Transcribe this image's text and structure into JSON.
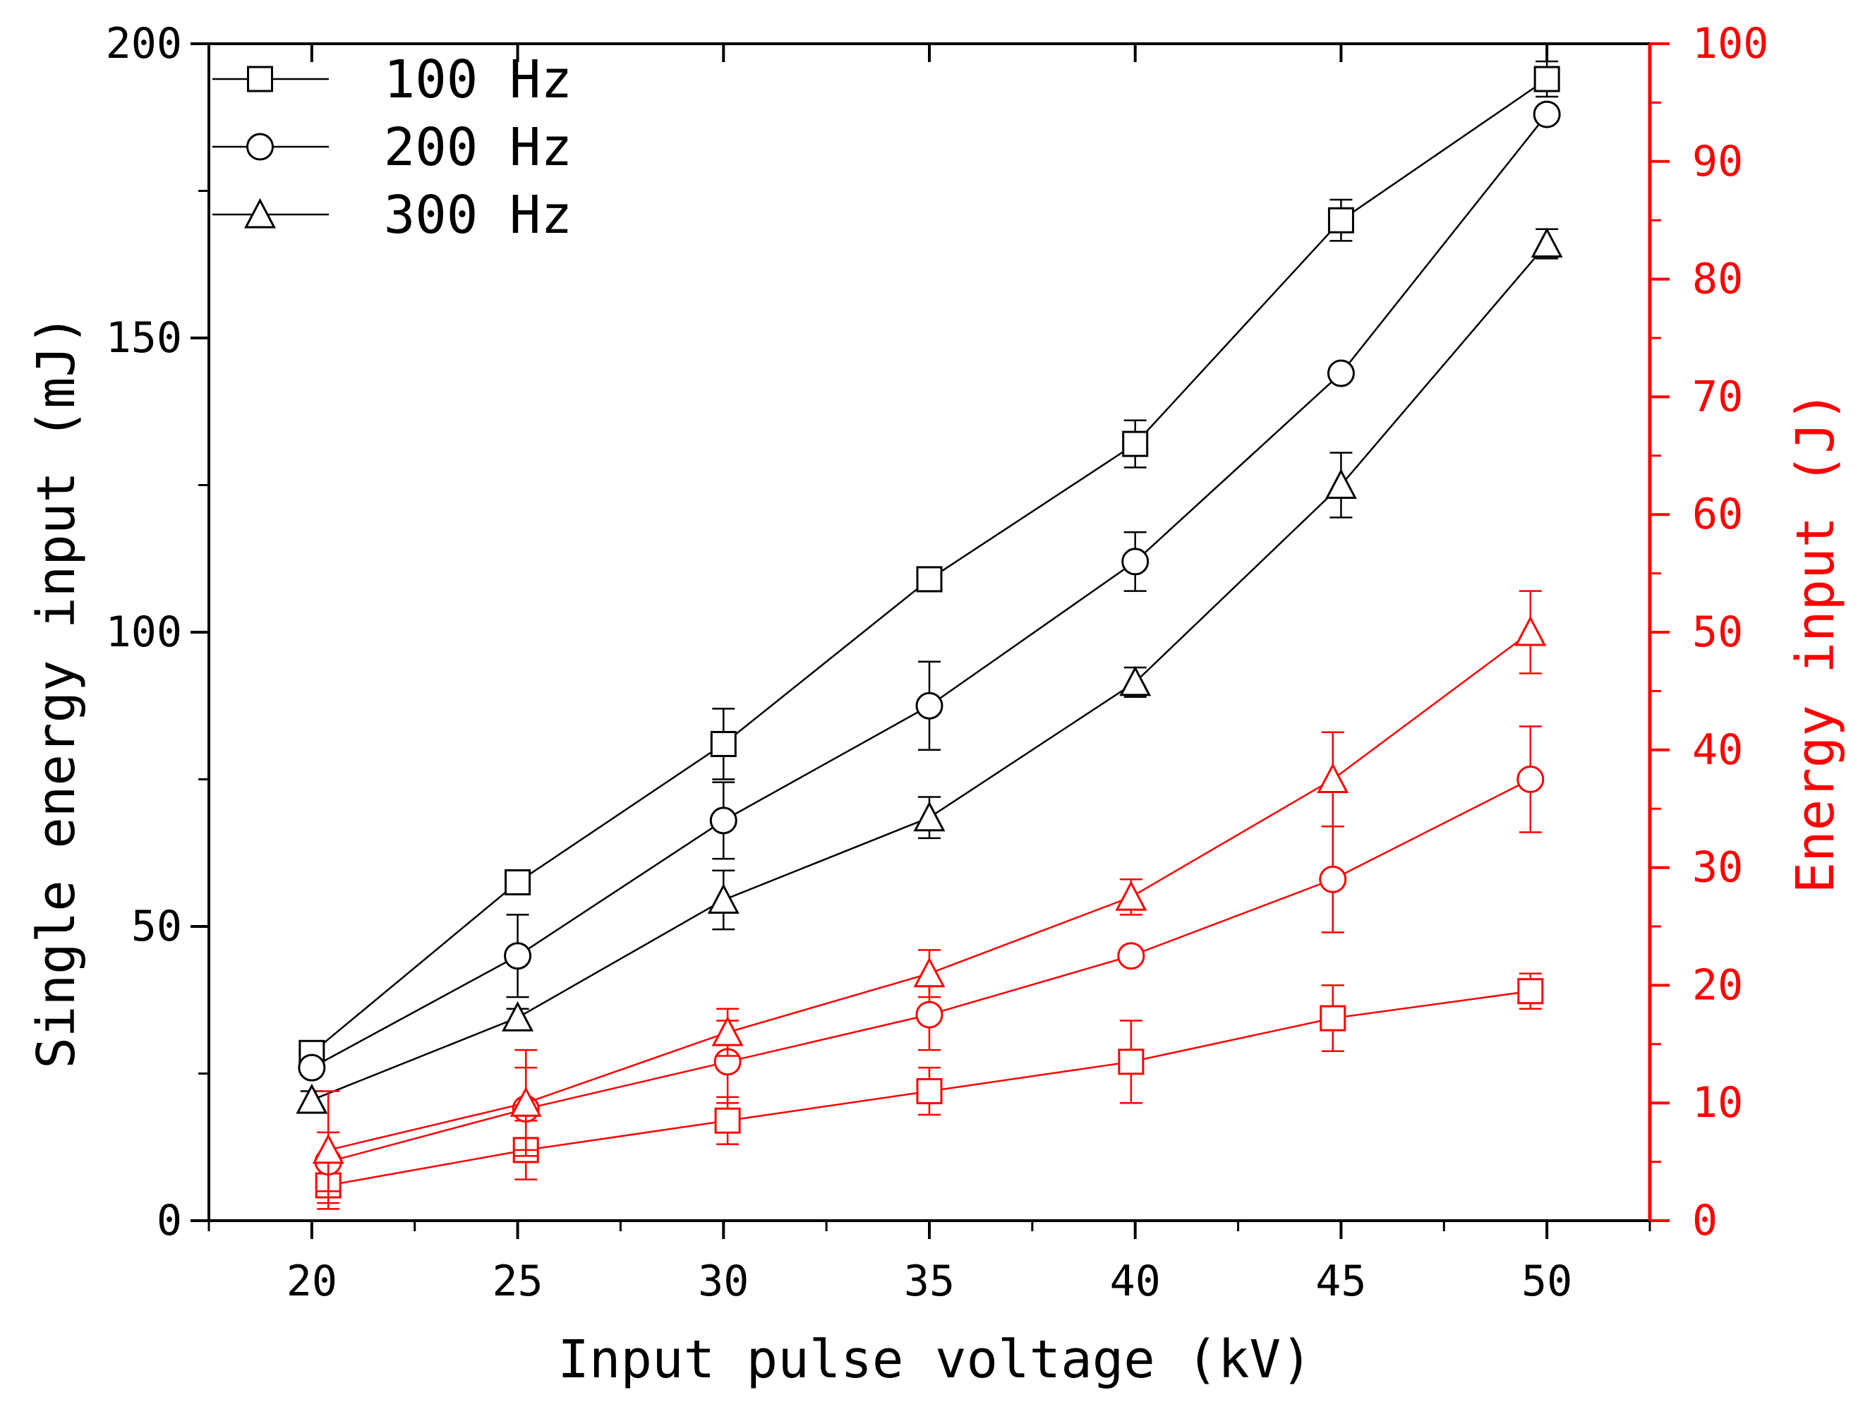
{
  "chart_data": {
    "type": "line",
    "title": "",
    "xlabel": "Input pulse voltage (kV)",
    "ylabel_left": "Single energy input (mJ)",
    "ylabel_right": "Energy input (J)",
    "xlim": [
      17.5,
      52.5
    ],
    "ylim_left": [
      0,
      200
    ],
    "ylim_right": [
      0,
      100
    ],
    "x_ticks": [
      20,
      25,
      30,
      35,
      40,
      45,
      50
    ],
    "x_tick_labels": [
      "20",
      "25",
      "30",
      "35",
      "40",
      "45",
      "50"
    ],
    "y_left_ticks": [
      0,
      50,
      100,
      150,
      200
    ],
    "y_left_tick_labels": [
      "0",
      "50",
      "100",
      "150",
      "200"
    ],
    "y_right_ticks": [
      0,
      10,
      20,
      30,
      40,
      50,
      60,
      70,
      80,
      90,
      100
    ],
    "y_right_tick_labels": [
      "0",
      "10",
      "20",
      "30",
      "40",
      "50",
      "60",
      "70",
      "80",
      "90",
      "100"
    ],
    "grid": false,
    "legend_position": "top-left",
    "legend": [
      {
        "label": "100 Hz",
        "marker": "square"
      },
      {
        "label": "200 Hz",
        "marker": "circle"
      },
      {
        "label": "300 Hz",
        "marker": "triangle"
      }
    ],
    "colors": {
      "left": "#000000",
      "right": "#ff0000"
    },
    "series": [
      {
        "name": "100 Hz",
        "axis": "left",
        "marker": "square",
        "x": [
          20,
          25,
          30,
          35,
          40,
          45,
          50
        ],
        "values": [
          28.5,
          57.5,
          81,
          109,
          132,
          170,
          194
        ],
        "errors": [
          1.5,
          1.5,
          6,
          2,
          4,
          3.5,
          3
        ]
      },
      {
        "name": "200 Hz",
        "axis": "left",
        "marker": "circle",
        "x": [
          20,
          25,
          30,
          35,
          40,
          45,
          50
        ],
        "values": [
          26,
          45,
          68,
          87.5,
          112,
          144,
          188
        ],
        "errors": [
          1,
          7,
          6.5,
          7.5,
          5,
          1,
          1
        ]
      },
      {
        "name": "300 Hz",
        "axis": "left",
        "marker": "triangle",
        "x": [
          20,
          25,
          30,
          35,
          40,
          45,
          50
        ],
        "values": [
          20.5,
          34.5,
          54.5,
          68.5,
          91.5,
          125,
          166
        ],
        "errors": [
          1.5,
          1.5,
          5,
          3.5,
          2.5,
          5.5,
          2.5
        ]
      },
      {
        "name": "100 Hz",
        "axis": "right",
        "marker": "square",
        "x": [
          20.4,
          25.2,
          30.1,
          35,
          39.9,
          44.8,
          49.6
        ],
        "values": [
          3,
          6,
          8.5,
          11,
          13.5,
          17.2,
          19.5
        ],
        "errors": [
          1.5,
          2.5,
          2,
          2,
          3.5,
          2.8,
          1.5
        ]
      },
      {
        "name": "200 Hz",
        "axis": "right",
        "marker": "circle",
        "x": [
          20.4,
          25.2,
          30.1,
          35,
          39.9,
          44.8,
          49.6
        ],
        "values": [
          5,
          9.5,
          13.5,
          17.5,
          22.5,
          29,
          37.5
        ],
        "errors": [
          2.5,
          3.5,
          3.5,
          3,
          0.5,
          4.5,
          4.5
        ]
      },
      {
        "name": "300 Hz",
        "axis": "right",
        "marker": "triangle",
        "x": [
          20.4,
          25.2,
          30.1,
          35,
          39.9,
          44.8,
          49.6
        ],
        "values": [
          6,
          10,
          16,
          21,
          27.5,
          37.5,
          50
        ],
        "errors": [
          5,
          4.5,
          2,
          2,
          1.5,
          4,
          3.5
        ]
      }
    ]
  }
}
